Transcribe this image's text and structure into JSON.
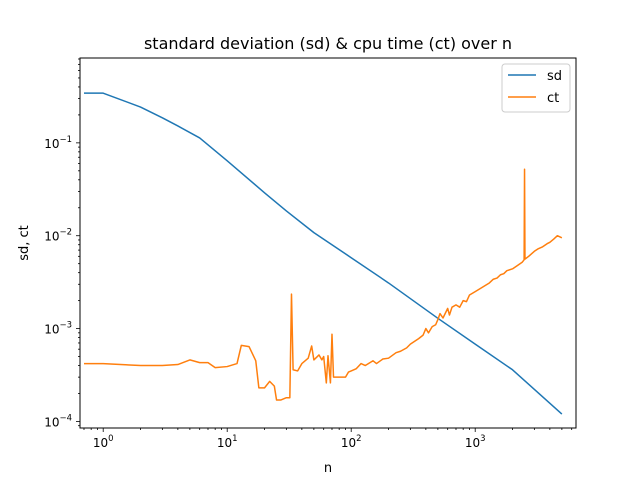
{
  "chart_data": {
    "type": "line",
    "title": "standard deviation (sd) & cpu time (ct) over n",
    "xlabel": "n",
    "ylabel": "sd, ct",
    "xscale": "log",
    "yscale": "log",
    "xlim": [
      0.65,
      6500
    ],
    "ylim": [
      8.5e-05,
      0.82
    ],
    "grid": false,
    "legend_position": "upper right",
    "x_ticks": [
      {
        "value": 1,
        "base": "10",
        "exp": "0"
      },
      {
        "value": 10,
        "base": "10",
        "exp": "1"
      },
      {
        "value": 100,
        "base": "10",
        "exp": "2"
      },
      {
        "value": 1000,
        "base": "10",
        "exp": "3"
      }
    ],
    "y_ticks": [
      {
        "value": 0.0001,
        "base": "10",
        "exp": "−4"
      },
      {
        "value": 0.001,
        "base": "10",
        "exp": "−3"
      },
      {
        "value": 0.01,
        "base": "10",
        "exp": "−2"
      },
      {
        "value": 0.1,
        "base": "10",
        "exp": "−1"
      }
    ],
    "series": [
      {
        "name": "sd",
        "color": "#1f77b4",
        "points": [
          [
            0.7,
            0.343
          ],
          [
            1,
            0.343
          ],
          [
            2,
            0.243
          ],
          [
            3,
            0.186
          ],
          [
            4,
            0.152
          ],
          [
            6,
            0.113
          ],
          [
            8,
            0.082
          ],
          [
            10,
            0.064
          ],
          [
            20,
            0.029
          ],
          [
            30,
            0.0185
          ],
          [
            50,
            0.0108
          ],
          [
            100,
            0.0058
          ],
          [
            200,
            0.0031
          ],
          [
            500,
            0.00129
          ],
          [
            1000,
            0.00068
          ],
          [
            2000,
            0.00036
          ],
          [
            5000,
            0.00012
          ]
        ]
      },
      {
        "name": "ct",
        "color": "#ff7f0e",
        "points": [
          [
            0.7,
            0.00042
          ],
          [
            1,
            0.00042
          ],
          [
            2,
            0.0004
          ],
          [
            3,
            0.0004
          ],
          [
            4,
            0.00041
          ],
          [
            5,
            0.00046
          ],
          [
            6,
            0.00043
          ],
          [
            7,
            0.00043
          ],
          [
            8,
            0.00038
          ],
          [
            10,
            0.00039
          ],
          [
            12,
            0.00042
          ],
          [
            13,
            0.00066
          ],
          [
            15,
            0.00064
          ],
          [
            17,
            0.00045
          ],
          [
            18,
            0.00023
          ],
          [
            20,
            0.00023
          ],
          [
            22,
            0.00027
          ],
          [
            24,
            0.00024
          ],
          [
            25,
            0.00017
          ],
          [
            27,
            0.00017
          ],
          [
            30,
            0.00018
          ],
          [
            32,
            0.00018
          ],
          [
            33,
            0.00235
          ],
          [
            34,
            0.00036
          ],
          [
            37,
            0.00035
          ],
          [
            40,
            0.00042
          ],
          [
            45,
            0.00048
          ],
          [
            48,
            0.00065
          ],
          [
            50,
            0.00046
          ],
          [
            55,
            0.00052
          ],
          [
            58,
            0.00046
          ],
          [
            60,
            0.0005
          ],
          [
            63,
            0.00026
          ],
          [
            65,
            0.00051
          ],
          [
            68,
            0.00026
          ],
          [
            70,
            0.00087
          ],
          [
            72,
            0.0003
          ],
          [
            80,
            0.0003
          ],
          [
            90,
            0.0003
          ],
          [
            95,
            0.00034
          ],
          [
            100,
            0.00035
          ],
          [
            110,
            0.00037
          ],
          [
            120,
            0.00042
          ],
          [
            130,
            0.0004
          ],
          [
            150,
            0.00045
          ],
          [
            160,
            0.00042
          ],
          [
            180,
            0.00047
          ],
          [
            200,
            0.00048
          ],
          [
            230,
            0.00055
          ],
          [
            250,
            0.00057
          ],
          [
            280,
            0.00062
          ],
          [
            300,
            0.00068
          ],
          [
            350,
            0.00078
          ],
          [
            380,
            0.00085
          ],
          [
            400,
            0.001
          ],
          [
            420,
            0.0009
          ],
          [
            450,
            0.00105
          ],
          [
            480,
            0.0011
          ],
          [
            500,
            0.00125
          ],
          [
            520,
            0.00145
          ],
          [
            550,
            0.0013
          ],
          [
            600,
            0.00165
          ],
          [
            620,
            0.0014
          ],
          [
            650,
            0.0017
          ],
          [
            700,
            0.0018
          ],
          [
            750,
            0.0017
          ],
          [
            800,
            0.002
          ],
          [
            850,
            0.00195
          ],
          [
            900,
            0.0023
          ],
          [
            1000,
            0.0025
          ],
          [
            1100,
            0.0027
          ],
          [
            1200,
            0.0029
          ],
          [
            1300,
            0.0031
          ],
          [
            1400,
            0.0034
          ],
          [
            1500,
            0.0035
          ],
          [
            1600,
            0.0038
          ],
          [
            1700,
            0.0039
          ],
          [
            1800,
            0.0042
          ],
          [
            2000,
            0.0044
          ],
          [
            2200,
            0.0048
          ],
          [
            2400,
            0.0052
          ],
          [
            2480,
            0.0055
          ],
          [
            2500,
            0.052
          ],
          [
            2520,
            0.0056
          ],
          [
            2700,
            0.006
          ],
          [
            3000,
            0.0068
          ],
          [
            3200,
            0.0072
          ],
          [
            3500,
            0.0076
          ],
          [
            3800,
            0.0082
          ],
          [
            4000,
            0.0085
          ],
          [
            4300,
            0.0092
          ],
          [
            4600,
            0.01
          ],
          [
            5000,
            0.0095
          ]
        ]
      }
    ]
  }
}
